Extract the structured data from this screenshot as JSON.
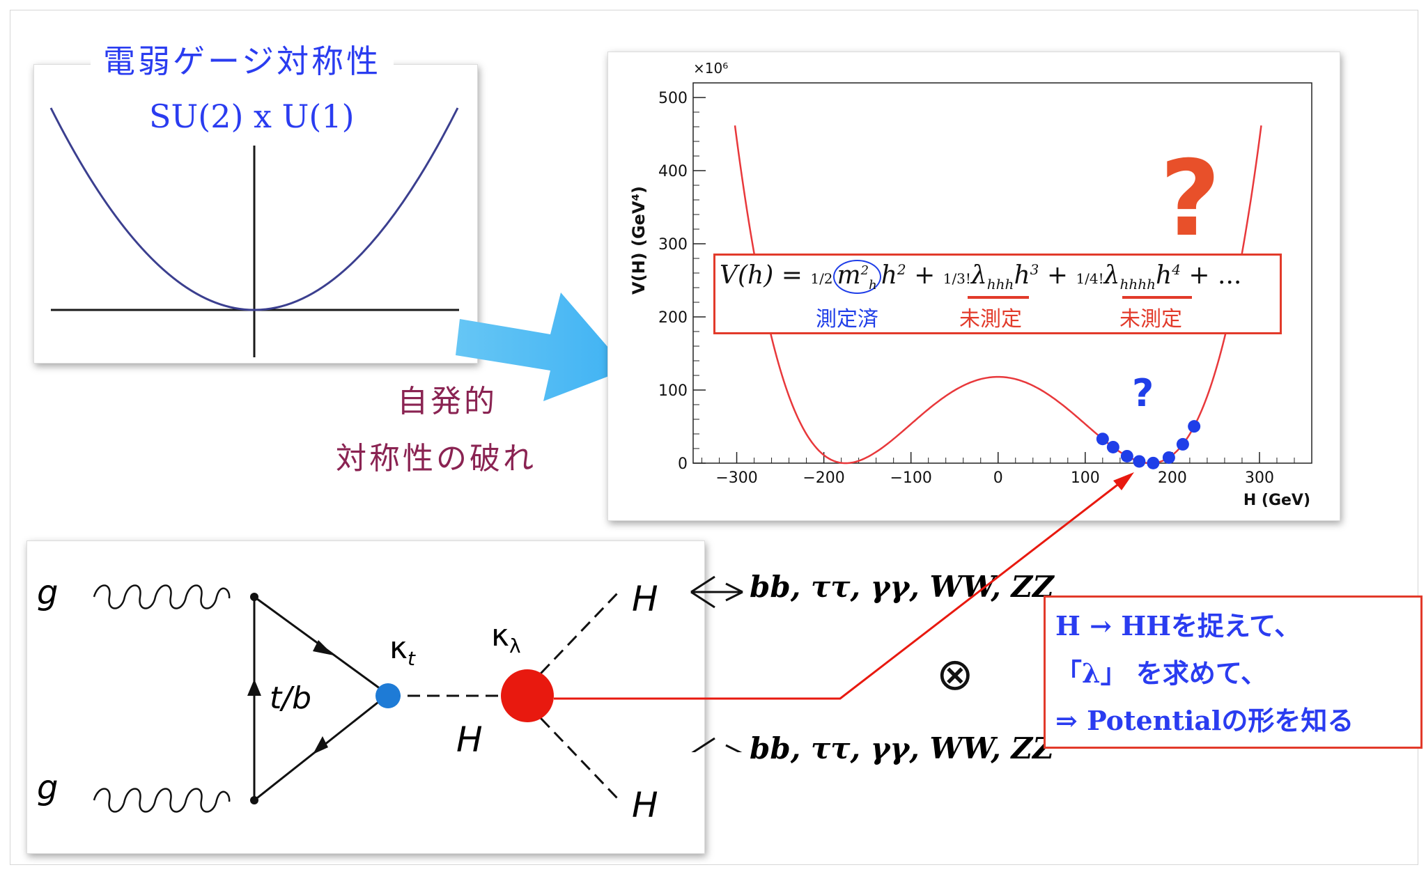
{
  "symmetry": {
    "title": "電弱ゲージ対称性",
    "group": "SU(2) x U(1)"
  },
  "breaking": {
    "line1": "自発的",
    "line2": "対称性の破れ"
  },
  "potential_plot": {
    "exponent_label": "×10⁶",
    "ylabel": "V(H) (GeV⁴)",
    "xlabel": "H (GeV)",
    "xticks": [
      "−300",
      "−200",
      "−100",
      "0",
      "100",
      "200",
      "300"
    ],
    "yticks": [
      "0",
      "100",
      "200",
      "300",
      "400",
      "500"
    ],
    "big_question": "?",
    "small_question": "?",
    "curve_color": "#e8383b",
    "point_color": "#1f3ee8"
  },
  "formula": {
    "text": "V(h) = ½m²ₕh² + ⅓!λₕₕₕh³ + ¼!λₕₕₕₕh⁴ + ...",
    "lhs": "V(h) =",
    "t1_coef": "1/2",
    "t1_m": "m",
    "t1_sup": "2",
    "t1_sub": "h",
    "t1_h": "h",
    "t1_hsup": "2",
    "plus1": "+",
    "t2_coef": "1/3!",
    "t2_lambda": "λ",
    "t2_sub": "hhh",
    "t2_h": "h",
    "t2_hsup": "3",
    "plus2": "+",
    "t3_coef": "1/4!",
    "t3_lambda": "λ",
    "t3_sub": "hhhh",
    "t3_h": "h",
    "t3_hsup": "4",
    "tail": "+ ...",
    "label_measured": "測定済",
    "label_unmeasured1": "未測定",
    "label_unmeasured2": "未測定"
  },
  "feynman": {
    "g_top": "g",
    "g_bottom": "g",
    "loop_label": "t/b",
    "kappa_t": "κ",
    "kappa_t_sub": "t",
    "kappa_lambda": "κ",
    "kappa_lambda_sub": "λ",
    "h_mid": "H",
    "h_top": "H",
    "h_bottom": "H",
    "vertex_small_color": "#1e7bd6",
    "vertex_big_color": "#e8190f"
  },
  "decays": {
    "top": "bb, ττ, γγ, WW, ZZ",
    "bottom": "bb, ττ, γγ, WW, ZZ",
    "otimes": "⊗"
  },
  "note": {
    "line1": "H → HHを捉えて、",
    "line2": "「λ」 を求めて、",
    "line3": "⇒ Potentialの形を知る"
  }
}
